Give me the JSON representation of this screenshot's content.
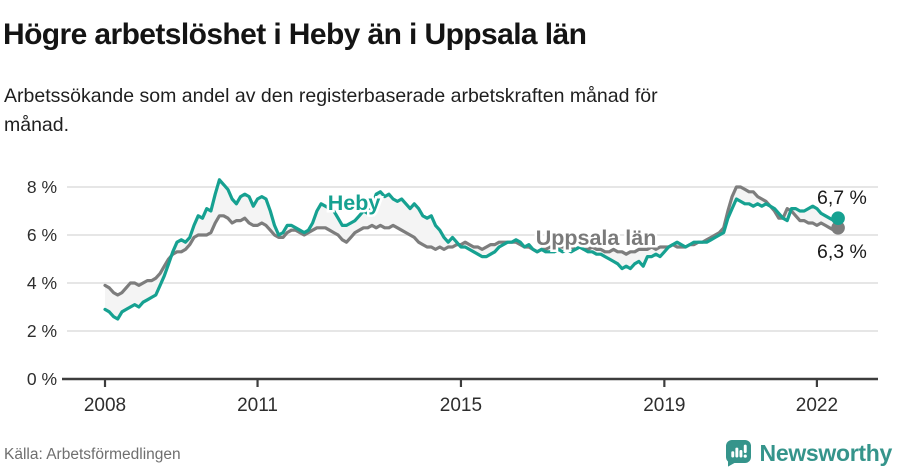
{
  "header": {
    "title": "Högre arbetslöshet i Heby än i Uppsala län",
    "subtitle": "Arbetssökande som andel av den registerbaserade arbetskraften månad för månad."
  },
  "footer": {
    "source": "Källa: Arbetsförmedlingen",
    "brand_name": "Newsworthy",
    "brand_icon": "bar-chart-speech-bubble-icon"
  },
  "colors": {
    "heby_line": "#16a191",
    "uppsala_line": "#7d7d7d",
    "band_fill": "#f4f4f4",
    "gridline": "#dedede",
    "axis": "#3d3d3d",
    "tick_text": "#2e2e2e",
    "annotation_text": "#1a1a1a",
    "uppsala_label": "#7a7a7a",
    "brand": "#35948b",
    "source_text": "#6f6f6f"
  },
  "chart_data": {
    "type": "line",
    "x_unit": "month",
    "x_start": "2008-01",
    "x_end": "2022-06",
    "x_ticks": [
      2008,
      2011,
      2015,
      2019,
      2022
    ],
    "y_ticks": [
      8,
      6,
      4,
      2,
      0
    ],
    "y_tick_suffix": " %",
    "ylim": [
      0,
      8.75
    ],
    "grid": true,
    "legend_position": "inline-labels",
    "band_between_series": true,
    "series": [
      {
        "name": "Heby",
        "end_label": "6,7 %",
        "end_value": 6.7,
        "label_anchor": {
          "year": 2012.38,
          "value": 7.04
        },
        "values": [
          2.9,
          2.8,
          2.6,
          2.5,
          2.8,
          2.9,
          3.0,
          3.1,
          3.0,
          3.2,
          3.3,
          3.4,
          3.5,
          3.9,
          4.3,
          4.8,
          5.3,
          5.7,
          5.8,
          5.7,
          5.9,
          6.4,
          6.8,
          6.7,
          7.1,
          7.0,
          7.7,
          8.3,
          8.1,
          7.9,
          7.5,
          7.3,
          7.6,
          7.7,
          7.6,
          7.2,
          7.5,
          7.6,
          7.5,
          7.0,
          6.4,
          6.0,
          6.1,
          6.4,
          6.4,
          6.3,
          6.2,
          6.1,
          6.2,
          6.5,
          7.0,
          7.3,
          7.2,
          7.1,
          7.0,
          6.7,
          6.4,
          6.4,
          6.5,
          6.6,
          6.8,
          7.0,
          6.9,
          7.2,
          7.7,
          7.8,
          7.6,
          7.7,
          7.5,
          7.4,
          7.5,
          7.3,
          7.1,
          7.3,
          7.1,
          6.8,
          6.7,
          6.8,
          6.4,
          6.2,
          5.9,
          5.7,
          5.9,
          5.7,
          5.5,
          5.5,
          5.4,
          5.3,
          5.2,
          5.1,
          5.1,
          5.2,
          5.3,
          5.5,
          5.6,
          5.7,
          5.7,
          5.8,
          5.7,
          5.5,
          5.6,
          5.4,
          5.3,
          5.4,
          5.3,
          5.3,
          5.3,
          5.4,
          5.3,
          5.4,
          5.3,
          5.4,
          5.5,
          5.4,
          5.3,
          5.3,
          5.2,
          5.2,
          5.1,
          5.0,
          4.9,
          4.8,
          4.6,
          4.7,
          4.6,
          4.8,
          4.9,
          4.7,
          5.1,
          5.1,
          5.2,
          5.1,
          5.3,
          5.5,
          5.6,
          5.7,
          5.6,
          5.5,
          5.6,
          5.7,
          5.7,
          5.7,
          5.7,
          5.8,
          5.9,
          6.0,
          6.1,
          6.7,
          7.1,
          7.5,
          7.4,
          7.3,
          7.3,
          7.2,
          7.3,
          7.2,
          7.3,
          7.2,
          7.1,
          6.9,
          6.7,
          6.6,
          7.1,
          7.1,
          7.0,
          7.0,
          7.1,
          7.2,
          7.1,
          6.9,
          6.8,
          6.7,
          6.6,
          6.7
        ]
      },
      {
        "name": "Uppsala län",
        "end_label": "6,3 %",
        "end_value": 6.3,
        "label_anchor": {
          "year": 2016.47,
          "value": 5.58
        },
        "values": [
          3.9,
          3.8,
          3.6,
          3.5,
          3.6,
          3.8,
          4.0,
          4.0,
          3.9,
          4.0,
          4.1,
          4.1,
          4.2,
          4.4,
          4.7,
          5.0,
          5.2,
          5.3,
          5.3,
          5.4,
          5.6,
          5.9,
          6.0,
          6.0,
          6.0,
          6.1,
          6.5,
          6.8,
          6.8,
          6.7,
          6.5,
          6.6,
          6.6,
          6.7,
          6.5,
          6.4,
          6.4,
          6.5,
          6.4,
          6.2,
          6.0,
          5.9,
          5.9,
          6.1,
          6.2,
          6.2,
          6.1,
          6.0,
          6.1,
          6.2,
          6.3,
          6.3,
          6.3,
          6.2,
          6.1,
          6.0,
          5.8,
          5.7,
          5.9,
          6.1,
          6.2,
          6.3,
          6.3,
          6.4,
          6.3,
          6.4,
          6.3,
          6.3,
          6.4,
          6.3,
          6.2,
          6.1,
          6.0,
          5.9,
          5.7,
          5.6,
          5.5,
          5.5,
          5.4,
          5.5,
          5.4,
          5.5,
          5.5,
          5.6,
          5.6,
          5.7,
          5.6,
          5.5,
          5.5,
          5.4,
          5.5,
          5.6,
          5.6,
          5.7,
          5.7,
          5.7,
          5.7,
          5.7,
          5.6,
          5.5,
          5.5,
          5.4,
          5.3,
          5.4,
          5.4,
          5.5,
          5.5,
          5.5,
          5.5,
          5.5,
          5.5,
          5.4,
          5.5,
          5.4,
          5.4,
          5.5,
          5.4,
          5.4,
          5.3,
          5.3,
          5.4,
          5.3,
          5.3,
          5.2,
          5.3,
          5.3,
          5.4,
          5.4,
          5.4,
          5.5,
          5.4,
          5.5,
          5.5,
          5.5,
          5.6,
          5.5,
          5.5,
          5.5,
          5.6,
          5.6,
          5.7,
          5.7,
          5.8,
          5.9,
          6.0,
          6.1,
          6.3,
          7.0,
          7.6,
          8.0,
          8.0,
          7.9,
          7.8,
          7.8,
          7.6,
          7.5,
          7.4,
          7.2,
          7.0,
          6.7,
          6.7,
          7.1,
          7.0,
          6.8,
          6.6,
          6.6,
          6.5,
          6.5,
          6.4,
          6.5,
          6.4,
          6.3,
          6.2,
          6.3
        ]
      }
    ],
    "end_value_labels": [
      {
        "text": "6,7 %",
        "anchor_value": 7.29
      },
      {
        "text": "6,3 %",
        "anchor_value": 5.04
      }
    ]
  }
}
